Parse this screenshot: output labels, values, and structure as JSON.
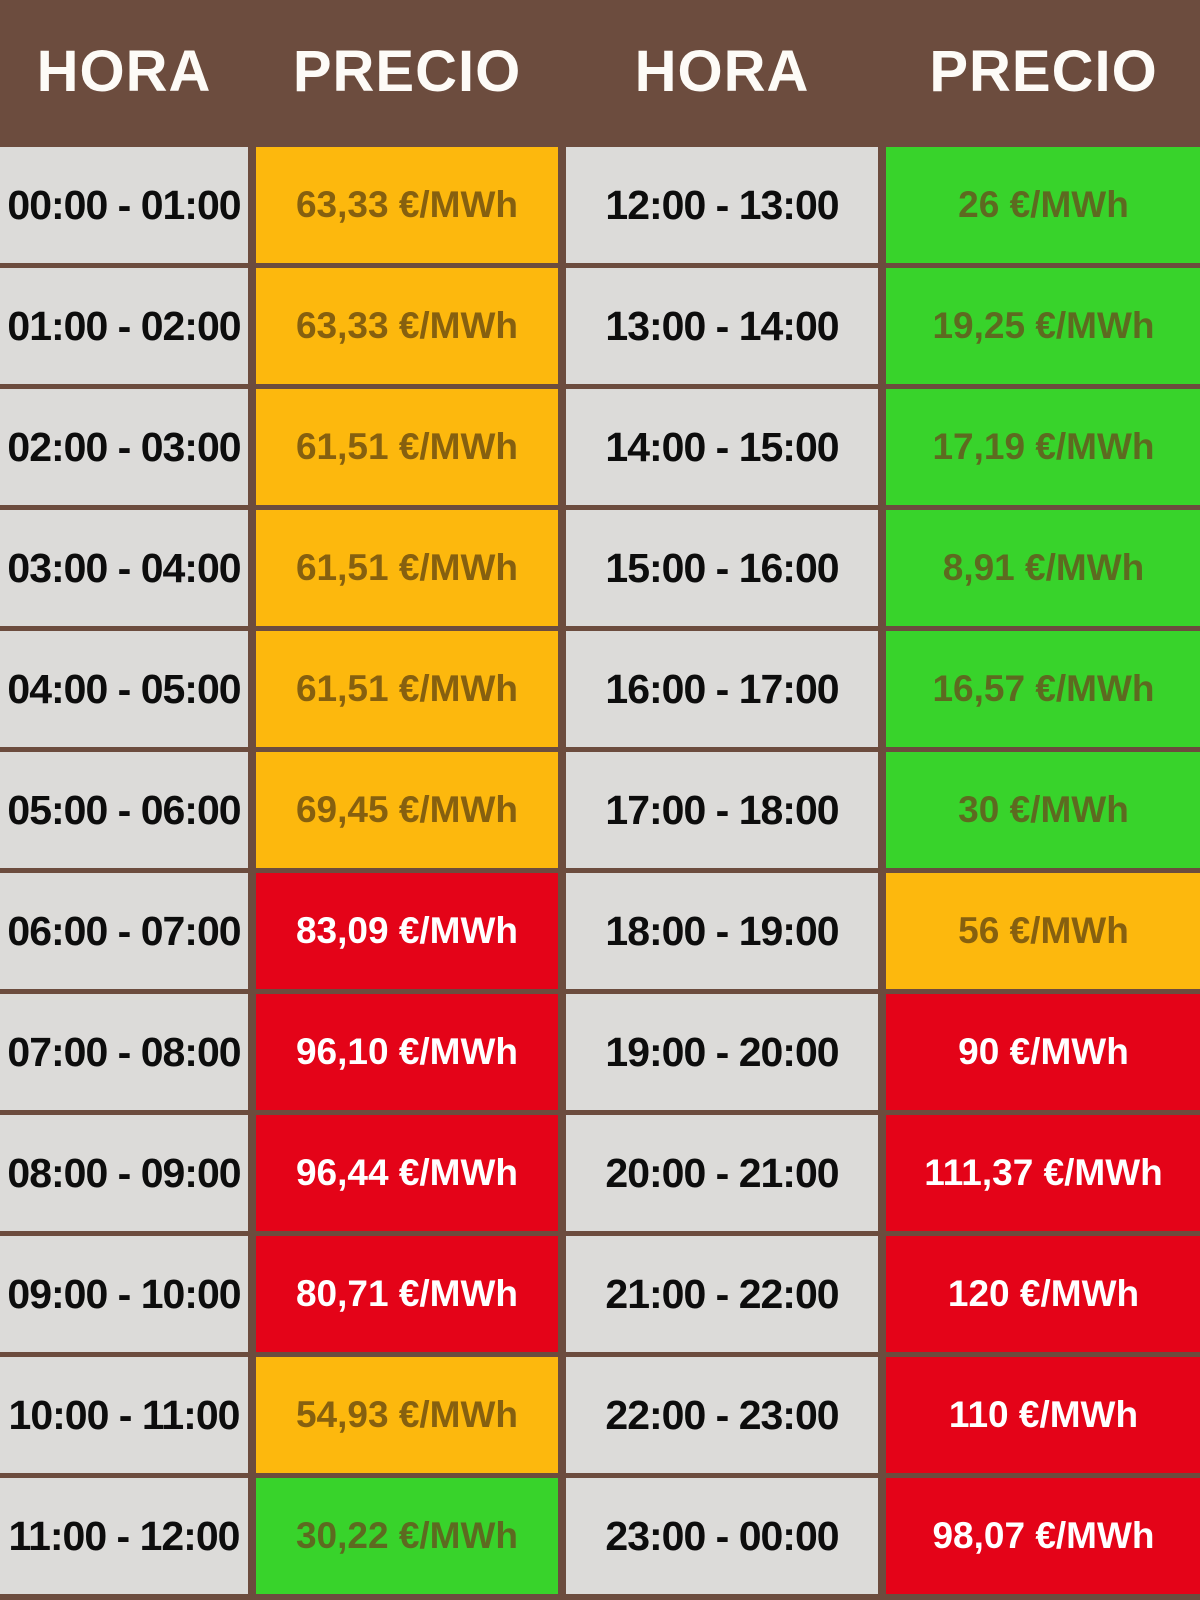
{
  "palette": {
    "brown": "#6c4c3e",
    "gray": "#dcdbd9",
    "orange": "#fdb80d",
    "green": "#38d32b",
    "red": "#e40318",
    "orange-text": "#86600f",
    "green-text": "#5d6a20",
    "red-text": "#ffffff"
  },
  "unit": "€/MWh",
  "price_level_colors": {
    "low": "green",
    "mid": "orange",
    "high": "red"
  },
  "chart_data": {
    "type": "table",
    "columns": [
      "HORA",
      "PRECIO",
      "HORA",
      "PRECIO"
    ],
    "rows": [
      {
        "hora_left": "00:00 - 01:00",
        "precio_left": "63,33 €/MWh",
        "level_left": "mid",
        "hora_right": "12:00 - 13:00",
        "precio_right": "26 €/MWh",
        "level_right": "low"
      },
      {
        "hora_left": "01:00 - 02:00",
        "precio_left": "63,33 €/MWh",
        "level_left": "mid",
        "hora_right": "13:00 - 14:00",
        "precio_right": "19,25 €/MWh",
        "level_right": "low"
      },
      {
        "hora_left": "02:00 - 03:00",
        "precio_left": "61,51 €/MWh",
        "level_left": "mid",
        "hora_right": "14:00 - 15:00",
        "precio_right": "17,19 €/MWh",
        "level_right": "low"
      },
      {
        "hora_left": "03:00 - 04:00",
        "precio_left": "61,51 €/MWh",
        "level_left": "mid",
        "hora_right": "15:00 - 16:00",
        "precio_right": "8,91 €/MWh",
        "level_right": "low"
      },
      {
        "hora_left": "04:00 - 05:00",
        "precio_left": "61,51 €/MWh",
        "level_left": "mid",
        "hora_right": "16:00 - 17:00",
        "precio_right": "16,57 €/MWh",
        "level_right": "low"
      },
      {
        "hora_left": "05:00 - 06:00",
        "precio_left": "69,45 €/MWh",
        "level_left": "mid",
        "hora_right": "17:00 - 18:00",
        "precio_right": "30 €/MWh",
        "level_right": "low"
      },
      {
        "hora_left": "06:00 - 07:00",
        "precio_left": "83,09 €/MWh",
        "level_left": "high",
        "hora_right": "18:00 - 19:00",
        "precio_right": "56 €/MWh",
        "level_right": "mid"
      },
      {
        "hora_left": "07:00 - 08:00",
        "precio_left": "96,10 €/MWh",
        "level_left": "high",
        "hora_right": "19:00 - 20:00",
        "precio_right": "90 €/MWh",
        "level_right": "high"
      },
      {
        "hora_left": "08:00 - 09:00",
        "precio_left": "96,44 €/MWh",
        "level_left": "high",
        "hora_right": "20:00 - 21:00",
        "precio_right": "111,37 €/MWh",
        "level_right": "high"
      },
      {
        "hora_left": "09:00 - 10:00",
        "precio_left": "80,71 €/MWh",
        "level_left": "high",
        "hora_right": "21:00 - 22:00",
        "precio_right": "120 €/MWh",
        "level_right": "high"
      },
      {
        "hora_left": "10:00 - 11:00",
        "precio_left": "54,93 €/MWh",
        "level_left": "mid",
        "hora_right": "22:00 - 23:00",
        "precio_right": "110 €/MWh",
        "level_right": "high"
      },
      {
        "hora_left": "11:00 - 12:00",
        "precio_left": "30,22 €/MWh",
        "level_left": "low",
        "hora_right": "23:00 - 00:00",
        "precio_right": "98,07 €/MWh",
        "level_right": "high"
      }
    ]
  }
}
